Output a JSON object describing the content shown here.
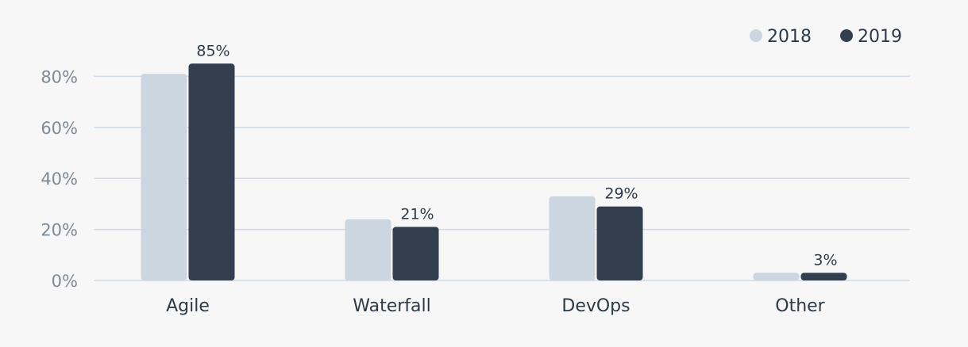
{
  "chart_data": {
    "type": "bar",
    "title": "",
    "xlabel": "",
    "ylabel": "",
    "categories": [
      "Agile",
      "Waterfall",
      "DevOps",
      "Other"
    ],
    "series": [
      {
        "name": "2018",
        "values": [
          81,
          24,
          33,
          3
        ],
        "color": "#cbd6e0"
      },
      {
        "name": "2019",
        "values": [
          85,
          21,
          29,
          3
        ],
        "color": "#333f4f"
      }
    ],
    "ylim": [
      0,
      80
    ],
    "yticks": [
      0,
      20,
      40,
      60,
      80
    ],
    "ytick_labels": [
      "0%",
      "20%",
      "40%",
      "60%",
      "80%"
    ],
    "data_labels": {
      "series": "2019",
      "labels": [
        "85%",
        "21%",
        "29%",
        "3%"
      ]
    },
    "legend": {
      "position": "top-right",
      "entries": [
        "2018",
        "2019"
      ]
    },
    "grid": true
  }
}
